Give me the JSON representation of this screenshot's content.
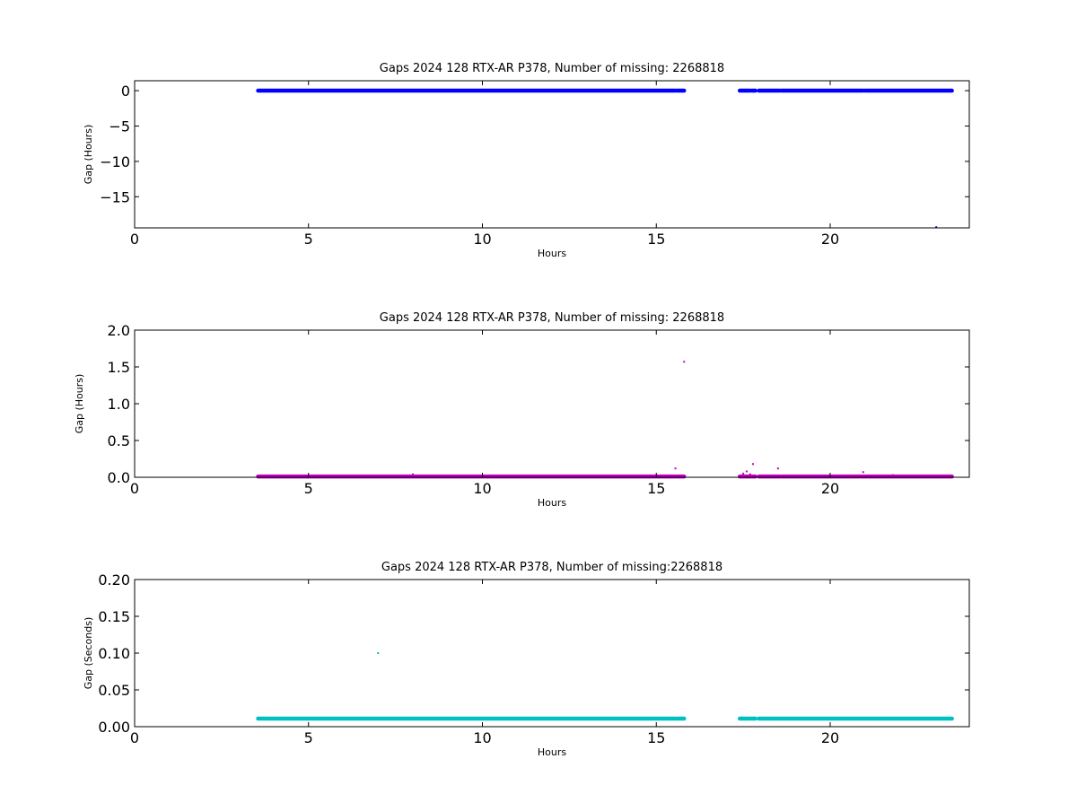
{
  "chart_data": [
    {
      "type": "scatter",
      "title": "Gaps 2024 128 RTX-AR  P378, Number of missing: 2268818",
      "xlabel": "Hours",
      "ylabel": "Gap (Hours)",
      "xlim": [
        0,
        24
      ],
      "ylim": [
        -19.4,
        1.4
      ],
      "xticks": [
        0,
        5,
        10,
        15,
        20
      ],
      "xtick_labels": [
        "0",
        "5",
        "10",
        "15",
        "20"
      ],
      "yticks": [
        0,
        -5,
        -10,
        -15
      ],
      "ytick_labels": [
        "0",
        "−5",
        "−10",
        "−15"
      ],
      "grid": false,
      "color": "#0000ff",
      "series": [
        {
          "segments": [
            {
              "x_start": 3.55,
              "x_end": 15.55,
              "y": 0.0
            },
            {
              "x_start": 15.6,
              "x_end": 15.8,
              "y": 0.0
            },
            {
              "x_start": 17.4,
              "x_end": 17.7,
              "y": 0.0
            },
            {
              "x_start": 17.75,
              "x_end": 17.85,
              "y": 0.0
            },
            {
              "x_start": 17.95,
              "x_end": 18.55,
              "y": 0.0
            },
            {
              "x_start": 18.6,
              "x_end": 20.95,
              "y": 0.0
            },
            {
              "x_start": 21.0,
              "x_end": 23.5,
              "y": 0.0
            }
          ],
          "points": [
            {
              "x": 23.05,
              "y": -19.3
            }
          ]
        }
      ]
    },
    {
      "type": "scatter",
      "title": "Gaps 2024 128 RTX-AR  P378, Number of missing: 2268818",
      "xlabel": "Hours",
      "ylabel": "Gap (Hours)",
      "xlim": [
        0,
        24
      ],
      "ylim": [
        0,
        2.0
      ],
      "xticks": [
        0,
        5,
        10,
        15,
        20
      ],
      "xtick_labels": [
        "0",
        "5",
        "10",
        "15",
        "20"
      ],
      "yticks": [
        0.0,
        0.5,
        1.0,
        1.5,
        2.0
      ],
      "ytick_labels": [
        "0.0",
        "0.5",
        "1.0",
        "1.5",
        "2.0"
      ],
      "grid": false,
      "color": "#bf00bf",
      "series": [
        {
          "segments": [
            {
              "x_start": 3.55,
              "x_end": 15.55,
              "y": 0.01
            },
            {
              "x_start": 15.6,
              "x_end": 15.8,
              "y": 0.01
            },
            {
              "x_start": 17.4,
              "x_end": 17.85,
              "y": 0.01
            },
            {
              "x_start": 17.95,
              "x_end": 18.55,
              "y": 0.01
            },
            {
              "x_start": 18.6,
              "x_end": 23.5,
              "y": 0.01
            }
          ],
          "points": [
            {
              "x": 8.0,
              "y": 0.04
            },
            {
              "x": 15.55,
              "y": 0.12
            },
            {
              "x": 15.8,
              "y": 1.57
            },
            {
              "x": 17.5,
              "y": 0.05
            },
            {
              "x": 17.6,
              "y": 0.08
            },
            {
              "x": 17.7,
              "y": 0.04
            },
            {
              "x": 17.78,
              "y": 0.18
            },
            {
              "x": 18.5,
              "y": 0.12
            },
            {
              "x": 20.95,
              "y": 0.07
            },
            {
              "x": 21.8,
              "y": 0.03
            }
          ]
        }
      ]
    },
    {
      "type": "scatter",
      "title": "Gaps 2024 128 RTX-AR  P378, Number of missing:2268818",
      "xlabel": "Hours",
      "ylabel": "Gap (Seconds)",
      "xlim": [
        0,
        24
      ],
      "ylim": [
        0,
        0.2
      ],
      "xticks": [
        0,
        5,
        10,
        15,
        20
      ],
      "xtick_labels": [
        "0",
        "5",
        "10",
        "15",
        "20"
      ],
      "yticks": [
        0.0,
        0.05,
        0.1,
        0.15,
        0.2
      ],
      "ytick_labels": [
        "0.00",
        "0.05",
        "0.10",
        "0.15",
        "0.20"
      ],
      "grid": false,
      "color": "#00bfbf",
      "series": [
        {
          "segments": [
            {
              "x_start": 3.55,
              "x_end": 15.55,
              "y": 0.011
            },
            {
              "x_start": 15.6,
              "x_end": 15.8,
              "y": 0.011
            },
            {
              "x_start": 17.4,
              "x_end": 17.7,
              "y": 0.011
            },
            {
              "x_start": 17.75,
              "x_end": 17.85,
              "y": 0.011
            },
            {
              "x_start": 17.95,
              "x_end": 18.55,
              "y": 0.011
            },
            {
              "x_start": 18.6,
              "x_end": 20.95,
              "y": 0.011
            },
            {
              "x_start": 21.0,
              "x_end": 23.5,
              "y": 0.011
            }
          ],
          "points": [
            {
              "x": 7.0,
              "y": 0.1
            }
          ]
        }
      ]
    }
  ]
}
